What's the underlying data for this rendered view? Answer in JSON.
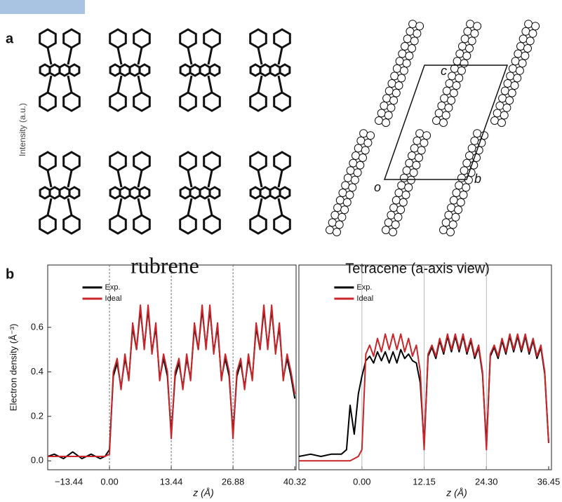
{
  "figure": {
    "panel_a": "a",
    "panel_b": "b",
    "intensity_label": "Intensity (a.u.)",
    "rubrene_label": "rubrene",
    "tetracene_label": "Tetracene (a-axis view)",
    "cell_c": "c",
    "cell_o": "o",
    "cell_b": "b"
  },
  "chart_data": [
    {
      "type": "line",
      "ylabel": "Electron density (Å⁻³)",
      "xlabel": "z (Å)",
      "xlim": [
        -13.44,
        40.6
      ],
      "ylim": [
        -0.04,
        0.88
      ],
      "xticks": [
        {
          "value": -13.44,
          "label": "−13.44"
        },
        {
          "value": 0,
          "label": "0.00"
        },
        13.44,
        26.88,
        40.32
      ],
      "yticks": [
        {
          "value": 0,
          "label": "0.0"
        },
        0.2,
        0.4,
        0.6
      ],
      "grid": "x",
      "x": [
        -13.44,
        -12,
        -10,
        -8,
        -6,
        -4,
        -2,
        -1,
        0,
        0.84,
        1.68,
        2.52,
        3.36,
        4.2,
        5.04,
        5.88,
        6.72,
        7.56,
        8.4,
        9.24,
        10.08,
        10.92,
        11.76,
        12.6,
        13.44,
        14.28,
        15.12,
        15.96,
        16.8,
        17.64,
        18.48,
        19.32,
        20.16,
        21,
        21.84,
        22.68,
        23.52,
        24.36,
        25.2,
        26.04,
        26.88,
        27.72,
        28.56,
        29.4,
        30.24,
        31.08,
        31.92,
        32.76,
        33.6,
        34.44,
        35.28,
        36.12,
        36.96,
        37.8,
        38.64,
        39.48,
        40.32
      ],
      "series": [
        {
          "name": "Exp.",
          "color": "#000000",
          "values": [
            0.02,
            0.03,
            0.01,
            0.04,
            0.01,
            0.03,
            0.01,
            0.02,
            0.05,
            0.38,
            0.44,
            0.33,
            0.46,
            0.37,
            0.6,
            0.5,
            0.68,
            0.51,
            0.68,
            0.49,
            0.6,
            0.37,
            0.46,
            0.38,
            0.12,
            0.38,
            0.44,
            0.33,
            0.46,
            0.37,
            0.6,
            0.5,
            0.68,
            0.51,
            0.68,
            0.49,
            0.6,
            0.37,
            0.46,
            0.38,
            0.12,
            0.38,
            0.44,
            0.33,
            0.46,
            0.37,
            0.6,
            0.5,
            0.68,
            0.51,
            0.68,
            0.49,
            0.6,
            0.37,
            0.46,
            0.38,
            0.28
          ]
        },
        {
          "name": "Ideal",
          "color": "#c8262b",
          "values": [
            0.02,
            0.02,
            0.02,
            0.02,
            0.02,
            0.02,
            0.02,
            0.02,
            0.03,
            0.4,
            0.46,
            0.32,
            0.48,
            0.36,
            0.62,
            0.5,
            0.7,
            0.5,
            0.7,
            0.48,
            0.62,
            0.36,
            0.48,
            0.4,
            0.1,
            0.4,
            0.46,
            0.32,
            0.48,
            0.36,
            0.62,
            0.5,
            0.7,
            0.5,
            0.7,
            0.48,
            0.62,
            0.36,
            0.48,
            0.4,
            0.1,
            0.4,
            0.46,
            0.32,
            0.48,
            0.36,
            0.62,
            0.5,
            0.7,
            0.5,
            0.7,
            0.48,
            0.62,
            0.36,
            0.48,
            0.4,
            0.3
          ]
        }
      ]
    },
    {
      "type": "line",
      "xlabel": "z (Å)",
      "xlim": [
        -12.3,
        37
      ],
      "ylim": [
        -0.04,
        0.88
      ],
      "xticks": [
        {
          "value": 0,
          "label": "0.00"
        },
        12.15,
        {
          "value": 24.3,
          "label": "24.30"
        },
        36.45
      ],
      "grid": "x",
      "x": [
        -12.3,
        -10,
        -8,
        -6,
        -4,
        -3,
        -2.3,
        -1.5,
        -0.7,
        0,
        0.76,
        1.52,
        2.28,
        3.04,
        3.8,
        4.56,
        5.32,
        6.08,
        6.83,
        7.59,
        8.35,
        9.11,
        9.87,
        10.63,
        11.39,
        12.15,
        12.91,
        13.67,
        14.43,
        15.19,
        15.95,
        16.71,
        17.47,
        18.23,
        18.98,
        19.74,
        20.5,
        21.26,
        22.02,
        22.78,
        23.54,
        24.3,
        25.06,
        25.82,
        26.58,
        27.34,
        28.1,
        28.86,
        29.62,
        30.38,
        31.13,
        31.89,
        32.65,
        33.41,
        34.17,
        34.93,
        35.69,
        36.45
      ],
      "series": [
        {
          "name": "Exp.",
          "color": "#000000",
          "values": [
            0.02,
            0.03,
            0.02,
            0.03,
            0.03,
            0.05,
            0.25,
            0.12,
            0.3,
            0.38,
            0.45,
            0.47,
            0.44,
            0.49,
            0.45,
            0.49,
            0.44,
            0.49,
            0.44,
            0.5,
            0.46,
            0.48,
            0.45,
            0.44,
            0.35,
            0.07,
            0.47,
            0.51,
            0.46,
            0.54,
            0.48,
            0.56,
            0.49,
            0.56,
            0.49,
            0.56,
            0.48,
            0.54,
            0.46,
            0.51,
            0.39,
            0.07,
            0.47,
            0.51,
            0.46,
            0.54,
            0.48,
            0.56,
            0.49,
            0.56,
            0.49,
            0.56,
            0.48,
            0.54,
            0.46,
            0.51,
            0.39,
            0.08
          ]
        },
        {
          "name": "Ideal",
          "color": "#c8262b",
          "values": [
            0,
            0,
            0,
            0,
            0,
            0,
            0,
            0.01,
            0.02,
            0.05,
            0.48,
            0.52,
            0.47,
            0.55,
            0.49,
            0.57,
            0.5,
            0.57,
            0.5,
            0.57,
            0.49,
            0.55,
            0.47,
            0.52,
            0.4,
            0.05,
            0.48,
            0.52,
            0.47,
            0.55,
            0.49,
            0.57,
            0.5,
            0.57,
            0.5,
            0.57,
            0.49,
            0.55,
            0.47,
            0.52,
            0.4,
            0.05,
            0.48,
            0.52,
            0.47,
            0.55,
            0.49,
            0.57,
            0.5,
            0.57,
            0.5,
            0.57,
            0.49,
            0.55,
            0.47,
            0.52,
            0.4,
            0.08
          ]
        }
      ]
    }
  ]
}
